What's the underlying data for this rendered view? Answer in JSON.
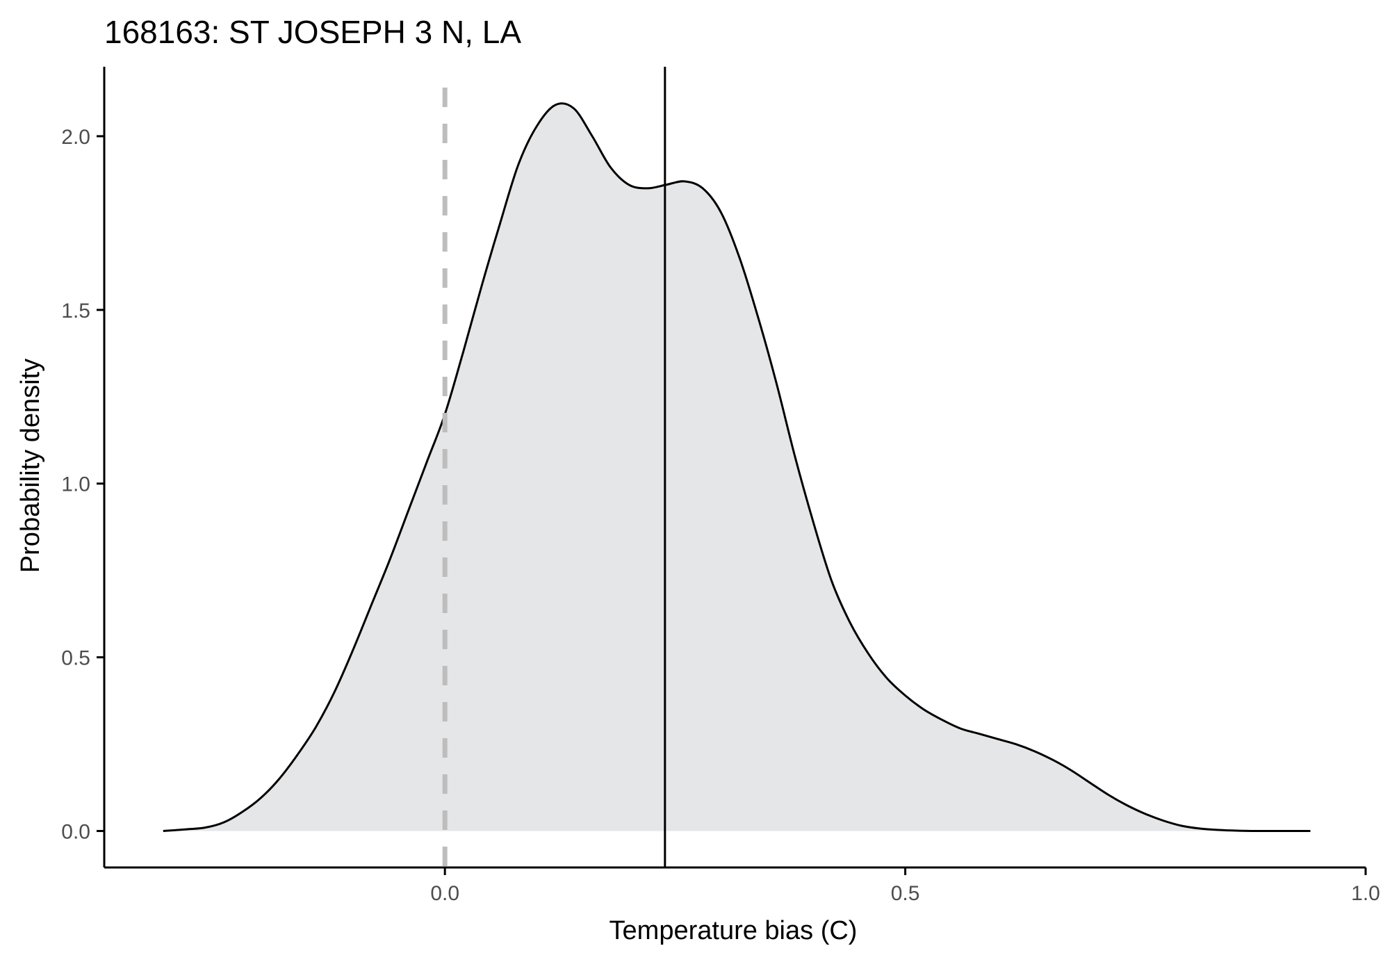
{
  "chart_data": {
    "type": "area",
    "title": "168163: ST JOSEPH 3 N, LA",
    "xlabel": "Temperature bias (C)",
    "ylabel": "Probability density",
    "xlim": [
      -0.37,
      1.0
    ],
    "ylim": [
      -0.105,
      2.2
    ],
    "x_ticks": [
      0.0,
      0.5,
      1.0
    ],
    "x_tick_labels": [
      "0.0",
      "0.5",
      "1.0"
    ],
    "y_ticks": [
      0.0,
      0.5,
      1.0,
      1.5,
      2.0
    ],
    "y_tick_labels": [
      "0.0",
      "0.5",
      "1.0",
      "1.5",
      "2.0"
    ],
    "grid": false,
    "legend": "none",
    "series": [
      {
        "x": [
          -0.306,
          -0.28,
          -0.26,
          -0.24,
          -0.22,
          -0.2,
          -0.18,
          -0.16,
          -0.14,
          -0.12,
          -0.1,
          -0.08,
          -0.06,
          -0.04,
          -0.02,
          0.0,
          0.02,
          0.04,
          0.06,
          0.08,
          0.1,
          0.12,
          0.14,
          0.16,
          0.18,
          0.2,
          0.22,
          0.24,
          0.26,
          0.28,
          0.3,
          0.32,
          0.34,
          0.36,
          0.38,
          0.4,
          0.42,
          0.44,
          0.46,
          0.48,
          0.5,
          0.52,
          0.54,
          0.56,
          0.58,
          0.6,
          0.62,
          0.64,
          0.66,
          0.68,
          0.7,
          0.72,
          0.74,
          0.76,
          0.78,
          0.8,
          0.82,
          0.84,
          0.86,
          0.88,
          0.9,
          0.92,
          0.94
        ],
        "y": [
          0.0,
          0.005,
          0.01,
          0.025,
          0.055,
          0.095,
          0.15,
          0.22,
          0.3,
          0.4,
          0.52,
          0.65,
          0.78,
          0.92,
          1.06,
          1.2,
          1.38,
          1.57,
          1.75,
          1.92,
          2.03,
          2.09,
          2.08,
          2.0,
          1.91,
          1.86,
          1.85,
          1.86,
          1.87,
          1.85,
          1.78,
          1.65,
          1.48,
          1.29,
          1.08,
          0.89,
          0.72,
          0.6,
          0.51,
          0.44,
          0.39,
          0.35,
          0.32,
          0.295,
          0.28,
          0.265,
          0.25,
          0.23,
          0.205,
          0.175,
          0.14,
          0.105,
          0.075,
          0.05,
          0.03,
          0.015,
          0.007,
          0.003,
          0.001,
          0.0,
          0.0,
          0.0,
          0.0
        ],
        "fill_color": "#e5e6e7",
        "line_color": "#000000"
      }
    ],
    "reference_lines": [
      {
        "x": 0.0,
        "style": "dashed",
        "color": "#bdbdbd"
      },
      {
        "x": 0.239,
        "style": "solid",
        "color": "#000000"
      }
    ]
  }
}
